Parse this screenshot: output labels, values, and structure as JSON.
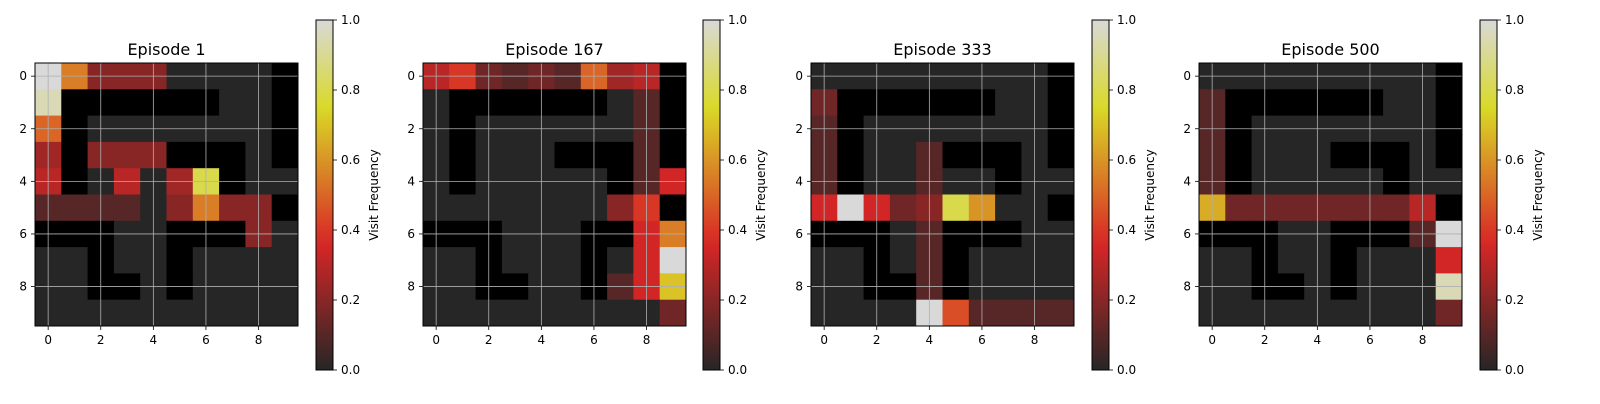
{
  "chart_data": [
    {
      "type": "heatmap",
      "title": "Episode 1",
      "colorbar_label": "Visit Frequency",
      "colorbar_ticks": [
        "0.0",
        "0.2",
        "0.4",
        "0.6",
        "0.8",
        "1.0"
      ],
      "x_ticks": [
        "0",
        "2",
        "4",
        "6",
        "8"
      ],
      "y_ticks": [
        "0",
        "2",
        "4",
        "6",
        "8"
      ],
      "grid": true,
      "colormap": "hot (alpha-blended over grey)",
      "values": [
        [
          1.0,
          0.55,
          0.2,
          0.2,
          0.2,
          0.0,
          0.0,
          0.0,
          0.0,
          -1
        ],
        [
          0.95,
          -1,
          -1,
          -1,
          -1,
          -1,
          -1,
          0.0,
          0.0,
          -1
        ],
        [
          0.5,
          -1,
          0.0,
          0.0,
          0.0,
          0.0,
          0.0,
          0.0,
          0.0,
          -1
        ],
        [
          0.25,
          -1,
          0.2,
          0.2,
          0.2,
          -1,
          -1,
          -1,
          0.0,
          -1
        ],
        [
          0.3,
          -1,
          0.0,
          0.3,
          0.0,
          0.25,
          0.8,
          -1,
          0.0,
          0.0
        ],
        [
          0.1,
          0.1,
          0.1,
          0.1,
          0.0,
          0.2,
          0.55,
          0.2,
          0.2,
          -1
        ],
        [
          -1,
          -1,
          -1,
          0.0,
          0.0,
          -1,
          -1,
          -1,
          0.2,
          0.0
        ],
        [
          0.0,
          0.0,
          -1,
          0.0,
          0.0,
          -1,
          0.0,
          0.0,
          0.0,
          0.0
        ],
        [
          0.0,
          0.0,
          -1,
          -1,
          0.0,
          -1,
          0.0,
          0.0,
          0.0,
          0.0
        ],
        [
          0.0,
          0.0,
          0.0,
          0.0,
          0.0,
          0.0,
          0.0,
          0.0,
          0.0,
          0.0
        ]
      ]
    },
    {
      "type": "heatmap",
      "title": "Episode 167",
      "colorbar_label": "Visit Frequency",
      "colorbar_ticks": [
        "0.0",
        "0.2",
        "0.4",
        "0.6",
        "0.8",
        "1.0"
      ],
      "x_ticks": [
        "0",
        "2",
        "4",
        "6",
        "8"
      ],
      "y_ticks": [
        "0",
        "2",
        "4",
        "6",
        "8"
      ],
      "grid": true,
      "colormap": "hot (alpha-blended over grey)",
      "values": [
        [
          0.3,
          0.4,
          0.15,
          0.1,
          0.15,
          0.1,
          0.5,
          0.25,
          0.3,
          -1
        ],
        [
          0.0,
          -1,
          -1,
          -1,
          -1,
          -1,
          -1,
          0.0,
          0.1,
          -1
        ],
        [
          0.0,
          -1,
          0.0,
          0.0,
          0.0,
          0.0,
          0.0,
          0.0,
          0.1,
          -1
        ],
        [
          0.0,
          -1,
          0.0,
          0.0,
          0.0,
          -1,
          -1,
          -1,
          0.1,
          -1
        ],
        [
          0.0,
          -1,
          0.0,
          0.0,
          0.0,
          0.0,
          0.0,
          -1,
          0.1,
          0.35
        ],
        [
          0.0,
          0.0,
          0.0,
          0.0,
          0.0,
          0.0,
          0.0,
          0.2,
          0.4,
          -1
        ],
        [
          -1,
          -1,
          -1,
          0.0,
          0.0,
          0.0,
          -1,
          -1,
          0.35,
          0.55
        ],
        [
          0.0,
          0.0,
          -1,
          0.0,
          0.0,
          0.0,
          -1,
          0.0,
          0.35,
          1.0
        ],
        [
          0.0,
          0.0,
          -1,
          -1,
          0.0,
          0.0,
          -1,
          0.1,
          0.35,
          0.7
        ],
        [
          0.0,
          0.0,
          0.0,
          0.0,
          0.0,
          0.0,
          0.0,
          0.0,
          0.0,
          0.15
        ]
      ]
    },
    {
      "type": "heatmap",
      "title": "Episode 333",
      "colorbar_label": "Visit Frequency",
      "colorbar_ticks": [
        "0.0",
        "0.2",
        "0.4",
        "0.6",
        "0.8",
        "1.0"
      ],
      "x_ticks": [
        "0",
        "2",
        "4",
        "6",
        "8"
      ],
      "y_ticks": [
        "0",
        "2",
        "4",
        "6",
        "8"
      ],
      "grid": true,
      "colormap": "hot (alpha-blended over grey)",
      "values": [
        [
          0.0,
          0.0,
          0.0,
          0.0,
          0.0,
          0.0,
          0.0,
          0.0,
          0.0,
          -1
        ],
        [
          0.15,
          -1,
          -1,
          -1,
          -1,
          -1,
          -1,
          0.0,
          0.0,
          -1
        ],
        [
          0.1,
          -1,
          0.0,
          0.0,
          0.0,
          0.0,
          0.0,
          0.0,
          0.0,
          -1
        ],
        [
          0.1,
          -1,
          0.0,
          0.0,
          0.1,
          -1,
          -1,
          -1,
          0.0,
          -1
        ],
        [
          0.1,
          -1,
          0.0,
          0.0,
          0.1,
          0.0,
          0.0,
          -1,
          0.0,
          0.0
        ],
        [
          0.35,
          1.0,
          0.35,
          0.15,
          0.2,
          0.8,
          0.6,
          0.0,
          0.0,
          -1
        ],
        [
          -1,
          -1,
          -1,
          0.0,
          0.1,
          -1,
          -1,
          -1,
          0.0,
          0.0
        ],
        [
          0.0,
          0.0,
          -1,
          0.0,
          0.1,
          -1,
          0.0,
          0.0,
          0.0,
          0.0
        ],
        [
          0.0,
          0.0,
          -1,
          -1,
          0.1,
          -1,
          0.0,
          0.0,
          0.0,
          0.0
        ],
        [
          0.0,
          0.0,
          0.0,
          0.0,
          1.0,
          0.45,
          0.1,
          0.1,
          0.1,
          0.1
        ]
      ]
    },
    {
      "type": "heatmap",
      "title": "Episode 500",
      "colorbar_label": "Visit Frequency",
      "colorbar_ticks": [
        "0.0",
        "0.2",
        "0.4",
        "0.6",
        "0.8",
        "1.0"
      ],
      "x_ticks": [
        "0",
        "2",
        "4",
        "6",
        "8"
      ],
      "y_ticks": [
        "0",
        "2",
        "4",
        "6",
        "8"
      ],
      "grid": true,
      "colormap": "hot (alpha-blended over grey)",
      "values": [
        [
          0.0,
          0.0,
          0.0,
          0.0,
          0.0,
          0.0,
          0.0,
          0.0,
          0.0,
          -1
        ],
        [
          0.1,
          -1,
          -1,
          -1,
          -1,
          -1,
          -1,
          0.0,
          0.0,
          -1
        ],
        [
          0.1,
          -1,
          0.0,
          0.0,
          0.0,
          0.0,
          0.0,
          0.0,
          0.0,
          -1
        ],
        [
          0.1,
          -1,
          0.0,
          0.0,
          0.0,
          -1,
          -1,
          -1,
          0.0,
          -1
        ],
        [
          0.1,
          -1,
          0.0,
          0.0,
          0.0,
          0.0,
          0.0,
          -1,
          0.0,
          0.0
        ],
        [
          0.65,
          0.15,
          0.15,
          0.15,
          0.15,
          0.15,
          0.15,
          0.15,
          0.3,
          -1
        ],
        [
          -1,
          -1,
          -1,
          0.0,
          0.0,
          -1,
          -1,
          -1,
          0.1,
          1.0
        ],
        [
          0.0,
          0.0,
          -1,
          0.0,
          0.0,
          -1,
          0.0,
          0.0,
          0.0,
          0.35
        ],
        [
          0.0,
          0.0,
          -1,
          -1,
          0.0,
          -1,
          0.0,
          0.0,
          0.0,
          0.95
        ],
        [
          0.0,
          0.0,
          0.0,
          0.0,
          0.0,
          0.0,
          0.0,
          0.0,
          0.0,
          0.15
        ]
      ]
    }
  ]
}
